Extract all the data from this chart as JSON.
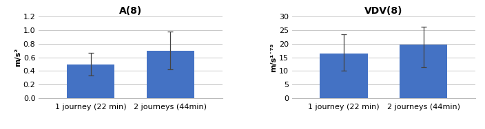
{
  "left": {
    "title": "A(8)",
    "categories": [
      "1 journey (22 min)",
      "2 journeys (44min)"
    ],
    "values": [
      0.5,
      0.7
    ],
    "errors_upper": [
      0.17,
      0.28
    ],
    "errors_lower": [
      0.17,
      0.28
    ],
    "ylabel": "m/s²",
    "ylim": [
      0,
      1.2
    ],
    "yticks": [
      0,
      0.2,
      0.4,
      0.6,
      0.8,
      1.0,
      1.2
    ],
    "bar_color": "#4472C4"
  },
  "right": {
    "title": "VDV(8)",
    "categories": [
      "1 journey (22 min)",
      "2 journeys (44min)"
    ],
    "values": [
      16.5,
      19.8
    ],
    "errors_upper": [
      7.0,
      6.5
    ],
    "errors_lower": [
      6.5,
      8.5
    ],
    "ylabel": "m/s¹˙⁷⁵",
    "ylim": [
      0,
      30
    ],
    "yticks": [
      0,
      5,
      10,
      15,
      20,
      25,
      30
    ],
    "bar_color": "#4472C4"
  },
  "background_color": "#ffffff",
  "title_fontsize": 10,
  "label_fontsize": 8,
  "tick_fontsize": 8,
  "bar_width": 0.6
}
